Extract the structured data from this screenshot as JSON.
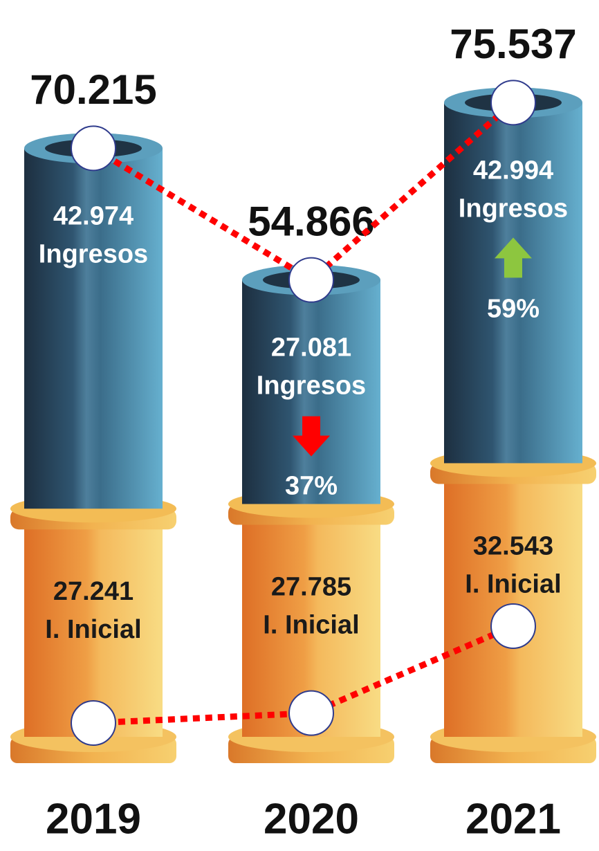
{
  "chart_data": {
    "type": "stacked-cylinder",
    "categories": [
      "2019",
      "2020",
      "2021"
    ],
    "series": [
      {
        "name": "I. Inicial",
        "color": "#ec9a3c",
        "values": [
          27241,
          27785,
          32543
        ],
        "value_labels": [
          "27.241",
          "27.785",
          "32.543"
        ]
      },
      {
        "name": "Ingresos",
        "color": "#3f7fa0",
        "values": [
          42974,
          27081,
          42994
        ],
        "value_labels": [
          "42.974",
          "27.081",
          "42.994"
        ]
      }
    ],
    "totals": {
      "values": [
        70215,
        54866,
        75537
      ],
      "value_labels": [
        "70.215",
        "54.866",
        "75.537"
      ]
    },
    "changes": {
      "values": [
        null,
        -37,
        59
      ],
      "value_labels": [
        null,
        "37%",
        "59%"
      ],
      "colors": [
        null,
        "#ff0000",
        "#8dc63f"
      ]
    },
    "line_color": "#ff0000",
    "ylim": [
      0,
      80000
    ]
  }
}
